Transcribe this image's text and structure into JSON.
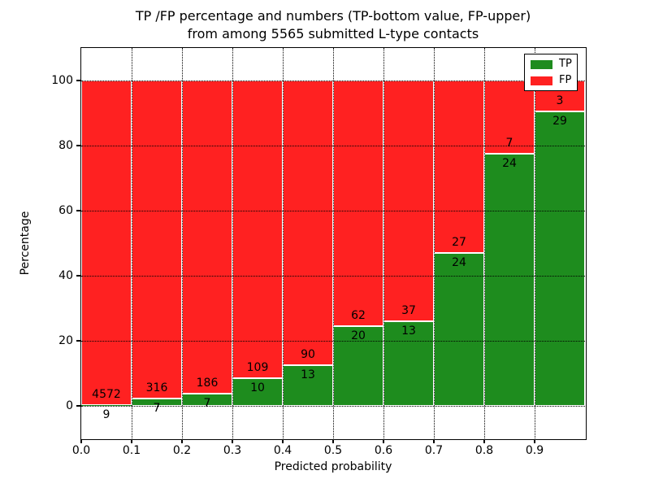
{
  "chart_data": {
    "type": "bar",
    "stacked": true,
    "orientation": "vertical",
    "title_line1": "TP /FP percentage and numbers (TP-bottom value, FP-upper)",
    "title_line2": "from among 5565 submitted L-type contacts",
    "xlabel": "Predicted probability",
    "ylabel": "Percentage",
    "xlim": [
      0.0,
      1.0
    ],
    "ylim": [
      -10,
      110
    ],
    "x_tick_labels": [
      "0.0",
      "0.1",
      "0.2",
      "0.3",
      "0.4",
      "0.5",
      "0.6",
      "0.7",
      "0.8",
      "0.9"
    ],
    "y_tick_values": [
      0,
      20,
      40,
      60,
      80,
      100
    ],
    "grid": true,
    "bar_total_percent": 100,
    "colors": {
      "tp": "#1e8c1e",
      "fp": "#ff2121",
      "bar_edge": "#ffffff",
      "grid": "#000000"
    },
    "legend": {
      "position": "upper right",
      "entries": [
        {
          "label": "TP",
          "color": "#1e8c1e"
        },
        {
          "label": "FP",
          "color": "#ff2121"
        }
      ]
    },
    "bins": [
      {
        "x_start": 0.0,
        "x_end": 0.1,
        "tp": 9,
        "fp": 4572
      },
      {
        "x_start": 0.1,
        "x_end": 0.2,
        "tp": 7,
        "fp": 316
      },
      {
        "x_start": 0.2,
        "x_end": 0.3,
        "tp": 7,
        "fp": 186
      },
      {
        "x_start": 0.3,
        "x_end": 0.4,
        "tp": 10,
        "fp": 109
      },
      {
        "x_start": 0.4,
        "x_end": 0.5,
        "tp": 13,
        "fp": 90
      },
      {
        "x_start": 0.5,
        "x_end": 0.6,
        "tp": 20,
        "fp": 62
      },
      {
        "x_start": 0.6,
        "x_end": 0.7,
        "tp": 13,
        "fp": 37
      },
      {
        "x_start": 0.7,
        "x_end": 0.8,
        "tp": 24,
        "fp": 27
      },
      {
        "x_start": 0.8,
        "x_end": 0.9,
        "tp": 24,
        "fp": 7
      },
      {
        "x_start": 0.9,
        "x_end": 1.0,
        "tp": 29,
        "fp": 3
      }
    ]
  }
}
